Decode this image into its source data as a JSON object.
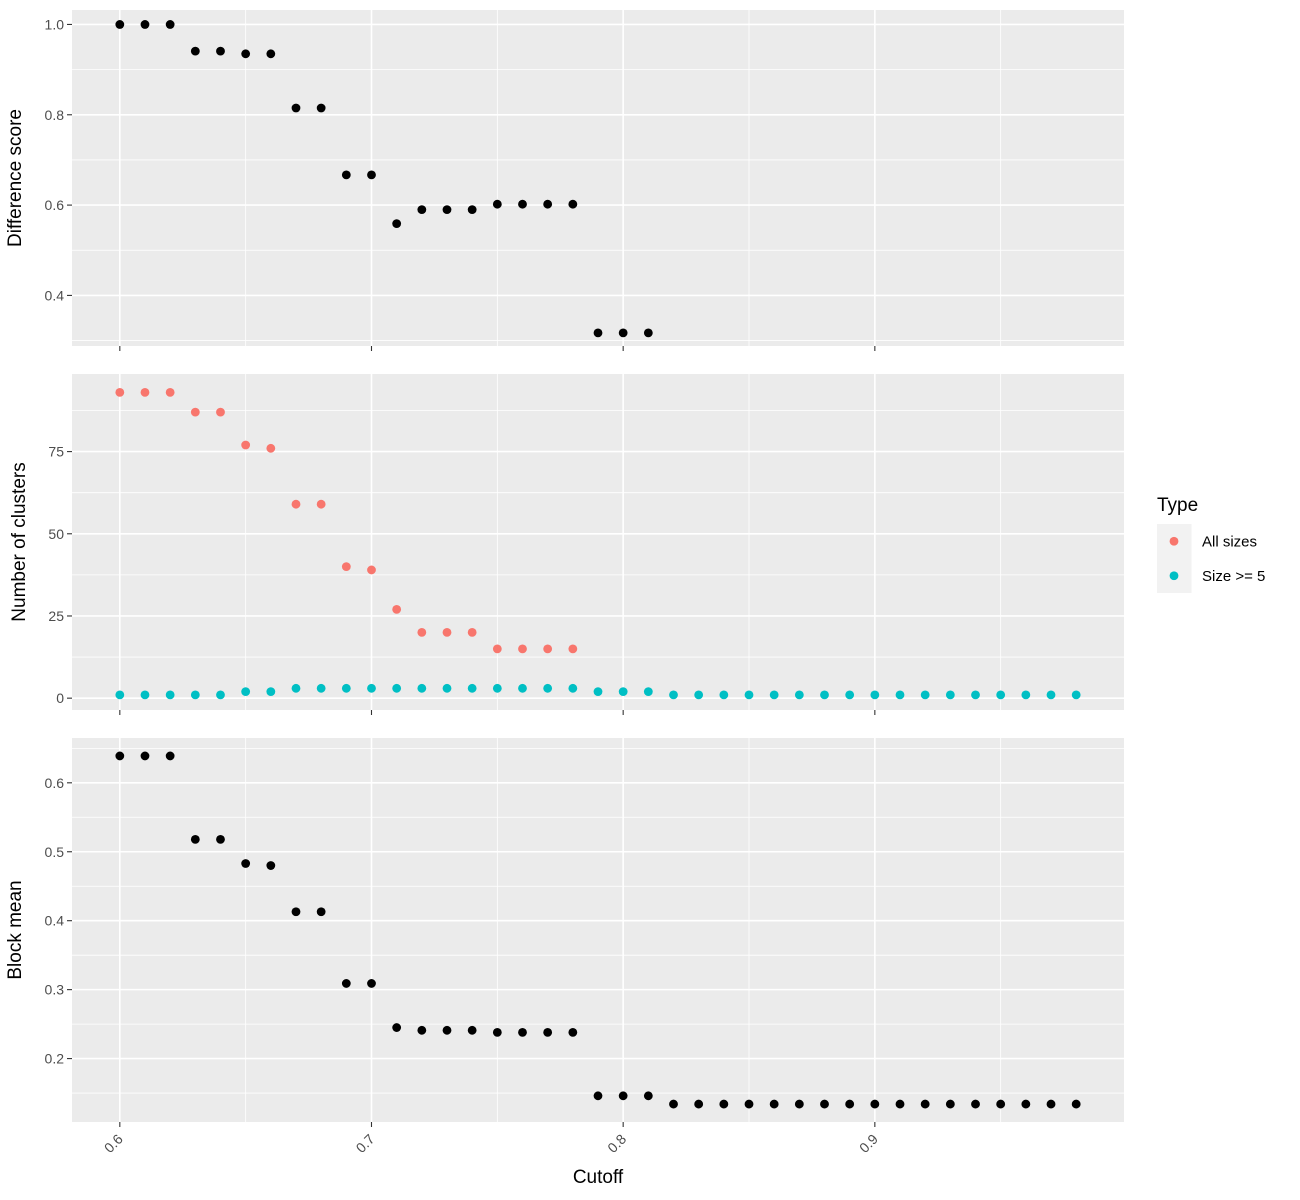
{
  "chart_data": [
    {
      "type": "scatter",
      "ylabel": "Difference score",
      "xlabel": "",
      "xlim": [
        0.581,
        0.999
      ],
      "ylim": [
        0.288,
        1.032
      ],
      "yticks": [
        0.4,
        0.6,
        0.8,
        1.0
      ],
      "ytick_labels": [
        "0.4",
        "0.6",
        "0.8",
        "1.0"
      ],
      "grid": true,
      "series": [
        {
          "color": "#000000",
          "x": [
            0.6,
            0.61,
            0.62,
            0.63,
            0.64,
            0.65,
            0.66,
            0.67,
            0.68,
            0.69,
            0.7,
            0.71,
            0.72,
            0.73,
            0.74,
            0.75,
            0.76,
            0.77,
            0.78,
            0.79,
            0.8,
            0.81
          ],
          "y": [
            1.0,
            1.0,
            1.0,
            0.941,
            0.941,
            0.935,
            0.935,
            0.815,
            0.815,
            0.667,
            0.667,
            0.559,
            0.59,
            0.59,
            0.59,
            0.602,
            0.602,
            0.602,
            0.602,
            0.317,
            0.317,
            0.317
          ]
        }
      ]
    },
    {
      "type": "scatter",
      "ylabel": "Number of clusters",
      "xlabel": "",
      "xlim": [
        0.581,
        0.999
      ],
      "ylim": [
        -3.6,
        98.6
      ],
      "yticks": [
        0,
        25,
        50,
        75
      ],
      "ytick_labels": [
        "0",
        "25",
        "50",
        "75"
      ],
      "grid": true,
      "series": [
        {
          "name": "All sizes",
          "color": "#F8766D",
          "x": [
            0.6,
            0.61,
            0.62,
            0.63,
            0.64,
            0.65,
            0.66,
            0.67,
            0.68,
            0.69,
            0.7,
            0.71,
            0.72,
            0.73,
            0.74,
            0.75,
            0.76,
            0.77,
            0.78
          ],
          "y": [
            93,
            93,
            93,
            87,
            87,
            77,
            76,
            59,
            59,
            40,
            39,
            27,
            20,
            20,
            20,
            15,
            15,
            15,
            15
          ]
        },
        {
          "name": "Size >= 5",
          "color": "#00BFC4",
          "x": [
            0.6,
            0.61,
            0.62,
            0.63,
            0.64,
            0.65,
            0.66,
            0.67,
            0.68,
            0.69,
            0.7,
            0.71,
            0.72,
            0.73,
            0.74,
            0.75,
            0.76,
            0.77,
            0.78,
            0.79,
            0.8,
            0.81,
            0.82,
            0.83,
            0.84,
            0.85,
            0.86,
            0.87,
            0.88,
            0.89,
            0.9,
            0.91,
            0.92,
            0.93,
            0.94,
            0.95,
            0.96,
            0.97,
            0.98
          ],
          "y": [
            1,
            1,
            1,
            1,
            1,
            2,
            2,
            3,
            3,
            3,
            3,
            3,
            3,
            3,
            3,
            3,
            3,
            3,
            3,
            2,
            2,
            2,
            1,
            1,
            1,
            1,
            1,
            1,
            1,
            1,
            1,
            1,
            1,
            1,
            1,
            1,
            1,
            1,
            1
          ]
        }
      ],
      "legend": {
        "title": "Type",
        "position": "right",
        "entries": [
          "All sizes",
          "Size >= 5"
        ]
      }
    },
    {
      "type": "scatter",
      "ylabel": "Block mean",
      "xlabel": "Cutoff",
      "xlim": [
        0.581,
        0.999
      ],
      "ylim": [
        0.108,
        0.665
      ],
      "yticks": [
        0.2,
        0.3,
        0.4,
        0.5,
        0.6
      ],
      "ytick_labels": [
        "0.2",
        "0.3",
        "0.4",
        "0.5",
        "0.6"
      ],
      "xticks": [
        0.6,
        0.7,
        0.8,
        0.9
      ],
      "xtick_labels": [
        "0.6",
        "0.7",
        "0.8",
        "0.9"
      ],
      "grid": true,
      "series": [
        {
          "color": "#000000",
          "x": [
            0.6,
            0.61,
            0.62,
            0.63,
            0.64,
            0.65,
            0.66,
            0.67,
            0.68,
            0.69,
            0.7,
            0.71,
            0.72,
            0.73,
            0.74,
            0.75,
            0.76,
            0.77,
            0.78,
            0.79,
            0.8,
            0.81,
            0.82,
            0.83,
            0.84,
            0.85,
            0.86,
            0.87,
            0.88,
            0.89,
            0.9,
            0.91,
            0.92,
            0.93,
            0.94,
            0.95,
            0.96,
            0.97,
            0.98
          ],
          "y": [
            0.639,
            0.639,
            0.639,
            0.518,
            0.518,
            0.483,
            0.48,
            0.413,
            0.413,
            0.309,
            0.309,
            0.245,
            0.241,
            0.241,
            0.241,
            0.238,
            0.238,
            0.238,
            0.238,
            0.146,
            0.146,
            0.146,
            0.134,
            0.134,
            0.134,
            0.134,
            0.134,
            0.134,
            0.134,
            0.134,
            0.134,
            0.134,
            0.134,
            0.134,
            0.134,
            0.134,
            0.134,
            0.134,
            0.134
          ]
        }
      ]
    }
  ]
}
